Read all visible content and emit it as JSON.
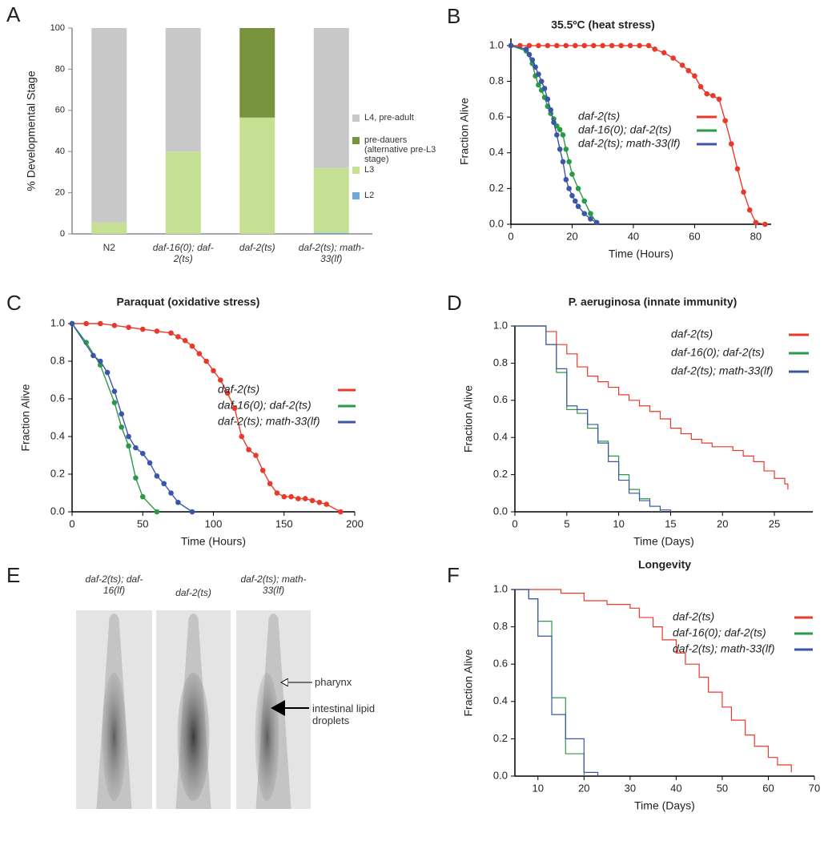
{
  "panel_labels": [
    "A",
    "B",
    "C",
    "D",
    "E",
    "F"
  ],
  "chart_data": [
    {
      "type": "bar",
      "ylabel": "% Developmental Stage",
      "categories": [
        "N2",
        "daf-16(0); daf-2(ts)",
        "daf-2(ts)",
        "daf-2(ts); math-33(lf)"
      ],
      "series": [
        {
          "name": "L2",
          "color": "#6fa8dc",
          "values": [
            0,
            0,
            0,
            0.5
          ]
        },
        {
          "name": "L3",
          "color": "#c6e093",
          "values": [
            5.5,
            40,
            56.5,
            31.5
          ]
        },
        {
          "name": "pre-dauers (alternative pre-L3 stage)",
          "color": "#77943c",
          "values": [
            0,
            0,
            43.5,
            0
          ]
        },
        {
          "name": "L4, pre-adult",
          "color": "#c8c8c8",
          "values": [
            94.5,
            60,
            0,
            68
          ]
        }
      ],
      "ylim": [
        0,
        100
      ],
      "yticks": [
        0,
        20,
        40,
        60,
        80,
        100
      ]
    },
    {
      "type": "line",
      "markers": true,
      "title": "35.5ºC (heat stress)",
      "xlabel": "Time (Hours)",
      "ylabel": "Fraction Alive",
      "xlim": [
        0,
        85
      ],
      "xticks": [
        0,
        20,
        40,
        60,
        80
      ],
      "ylim": [
        0,
        1.04
      ],
      "yticks": [
        {
          "value": 0,
          "label": "0.0"
        },
        0.2,
        0.4,
        0.6,
        0.8,
        {
          "value": 1,
          "label": "1.0"
        }
      ],
      "series": [
        {
          "name": "daf-2(ts)",
          "color": "#e8392b",
          "x": [
            0,
            3,
            6,
            9,
            12,
            15,
            18,
            21,
            24,
            27,
            30,
            33,
            36,
            39,
            42,
            45,
            47,
            50,
            53,
            56,
            58,
            60,
            62,
            64,
            66,
            68,
            70,
            72,
            74,
            76,
            78,
            80,
            83
          ],
          "values": [
            1,
            1,
            1,
            1,
            1,
            1,
            1,
            1,
            1,
            1,
            1,
            1,
            1,
            1,
            1,
            1,
            0.98,
            0.96,
            0.93,
            0.89,
            0.86,
            0.83,
            0.77,
            0.73,
            0.72,
            0.7,
            0.58,
            0.45,
            0.31,
            0.18,
            0.08,
            0.01,
            0
          ]
        },
        {
          "name": "daf-16(0); daf-2(ts)",
          "color": "#2a9a48",
          "x": [
            0,
            5,
            7,
            8,
            9,
            10,
            11,
            12,
            13,
            14,
            15,
            16,
            17,
            18,
            19,
            20,
            22,
            24,
            26,
            28
          ],
          "values": [
            1,
            0.97,
            0.9,
            0.83,
            0.78,
            0.75,
            0.71,
            0.66,
            0.62,
            0.59,
            0.55,
            0.53,
            0.5,
            0.42,
            0.35,
            0.28,
            0.2,
            0.13,
            0.06,
            0.01
          ]
        },
        {
          "name": "daf-2(ts); math-33(lf)",
          "color": "#3a56a8",
          "x": [
            0,
            5,
            6,
            7,
            8,
            9,
            10,
            11,
            12,
            13,
            14,
            15,
            16,
            17,
            18,
            19,
            20,
            21,
            22,
            24,
            26,
            28
          ],
          "values": [
            1,
            0.98,
            0.95,
            0.92,
            0.88,
            0.84,
            0.8,
            0.76,
            0.7,
            0.64,
            0.57,
            0.5,
            0.42,
            0.35,
            0.25,
            0.2,
            0.16,
            0.13,
            0.1,
            0.06,
            0.03,
            0.01
          ]
        }
      ]
    },
    {
      "type": "line",
      "markers": true,
      "title": "Paraquat (oxidative stress)",
      "xlabel": "Time (Hours)",
      "ylabel": "Fraction Alive",
      "xlim": [
        0,
        200
      ],
      "xticks": [
        0,
        50,
        100,
        150,
        200
      ],
      "ylim": [
        0,
        1
      ],
      "yticks": [
        {
          "value": 0,
          "label": "0.0"
        },
        0.2,
        0.4,
        0.6,
        0.8,
        {
          "value": 1,
          "label": "1.0"
        }
      ],
      "series": [
        {
          "name": "daf-2(ts)",
          "color": "#e8392b",
          "x": [
            0,
            10,
            20,
            30,
            40,
            50,
            60,
            70,
            75,
            80,
            85,
            90,
            95,
            100,
            105,
            110,
            115,
            120,
            125,
            130,
            135,
            140,
            145,
            150,
            155,
            160,
            165,
            170,
            175,
            180,
            190
          ],
          "values": [
            1,
            1,
            1,
            0.99,
            0.98,
            0.97,
            0.96,
            0.95,
            0.93,
            0.91,
            0.88,
            0.84,
            0.8,
            0.75,
            0.7,
            0.63,
            0.55,
            0.4,
            0.33,
            0.3,
            0.22,
            0.15,
            0.1,
            0.08,
            0.08,
            0.07,
            0.07,
            0.06,
            0.05,
            0.04,
            0
          ]
        },
        {
          "name": "daf-16(0); daf-2(ts)",
          "color": "#2a9a48",
          "x": [
            0,
            10,
            20,
            30,
            35,
            40,
            45,
            50,
            60
          ],
          "values": [
            1,
            0.9,
            0.78,
            0.58,
            0.45,
            0.35,
            0.18,
            0.08,
            0
          ]
        },
        {
          "name": "daf-2(ts); math-33(lf)",
          "color": "#3a56a8",
          "x": [
            0,
            15,
            20,
            25,
            30,
            35,
            40,
            45,
            50,
            55,
            60,
            65,
            70,
            75,
            85
          ],
          "values": [
            1,
            0.83,
            0.8,
            0.74,
            0.64,
            0.52,
            0.4,
            0.34,
            0.31,
            0.26,
            0.19,
            0.15,
            0.1,
            0.05,
            0
          ]
        }
      ]
    },
    {
      "type": "step",
      "title": "P. aeruginosa (innate immunity)",
      "xlabel": "Time (Days)",
      "ylabel": "Fraction Alive",
      "xlim": [
        0,
        28.7
      ],
      "xticks": [
        0,
        5,
        10,
        15,
        20,
        25
      ],
      "ylim": [
        0,
        1
      ],
      "yticks": [
        {
          "value": 0,
          "label": "0.0"
        },
        0.2,
        0.4,
        0.6,
        0.8,
        {
          "value": 1,
          "label": "1.0"
        }
      ],
      "series": [
        {
          "name": "daf-2(ts)",
          "color": "#e8392b",
          "x": [
            0,
            2,
            3,
            4,
            5,
            6,
            7,
            8,
            9,
            10,
            11,
            12,
            13,
            14,
            15,
            16,
            17,
            18,
            19,
            20,
            21,
            22,
            23,
            24,
            25,
            26,
            26.3
          ],
          "values": [
            1,
            1,
            0.97,
            0.9,
            0.85,
            0.78,
            0.73,
            0.7,
            0.67,
            0.63,
            0.6,
            0.57,
            0.54,
            0.5,
            0.45,
            0.42,
            0.39,
            0.37,
            0.35,
            0.35,
            0.33,
            0.3,
            0.27,
            0.22,
            0.18,
            0.15,
            0.12
          ]
        },
        {
          "name": "daf-16(0); daf-2(ts)",
          "color": "#2a9a48",
          "x": [
            0,
            2,
            3,
            4,
            5,
            6,
            7,
            8,
            9,
            10,
            11,
            12,
            13,
            14
          ],
          "values": [
            1,
            1,
            0.9,
            0.75,
            0.55,
            0.53,
            0.45,
            0.38,
            0.3,
            0.2,
            0.12,
            0.07,
            0.03,
            0
          ]
        },
        {
          "name": "daf-2(ts); math-33(lf)",
          "color": "#3a56a8",
          "x": [
            0,
            2,
            3,
            4,
            5,
            6,
            7,
            8,
            9,
            10,
            11,
            12,
            13,
            14,
            15
          ],
          "values": [
            1,
            1,
            0.9,
            0.77,
            0.57,
            0.55,
            0.47,
            0.37,
            0.27,
            0.17,
            0.1,
            0.06,
            0.03,
            0.01,
            0
          ]
        }
      ]
    },
    {
      "type": "step",
      "title": "Longevity",
      "xlabel": "Time (Days)",
      "ylabel": "Fraction Alive",
      "xlim": [
        5,
        70
      ],
      "xticks": [
        10,
        20,
        30,
        40,
        50,
        60,
        70
      ],
      "ylim": [
        0,
        1
      ],
      "yticks": [
        {
          "value": 0,
          "label": "0.0"
        },
        0.2,
        0.4,
        0.6,
        0.8,
        {
          "value": 1,
          "label": "1.0"
        }
      ],
      "series": [
        {
          "name": "daf-2(ts)",
          "color": "#e8392b",
          "x": [
            5,
            10,
            15,
            20,
            25,
            30,
            32,
            35,
            37,
            40,
            42,
            45,
            47,
            50,
            52,
            55,
            57,
            60,
            62,
            65
          ],
          "values": [
            1,
            1,
            0.98,
            0.94,
            0.92,
            0.9,
            0.85,
            0.8,
            0.73,
            0.66,
            0.6,
            0.53,
            0.45,
            0.37,
            0.3,
            0.22,
            0.16,
            0.1,
            0.06,
            0.02
          ]
        },
        {
          "name": "daf-16(0); daf-2(ts)",
          "color": "#2a9a48",
          "x": [
            5,
            8,
            10,
            13,
            16,
            20
          ],
          "values": [
            1,
            0.95,
            0.83,
            0.42,
            0.12,
            0
          ]
        },
        {
          "name": "daf-2(ts); math-33(lf)",
          "color": "#3a56a8",
          "x": [
            5,
            8,
            10,
            13,
            16,
            20,
            23
          ],
          "values": [
            1,
            0.95,
            0.75,
            0.33,
            0.2,
            0.02,
            0
          ]
        }
      ]
    }
  ],
  "image_panel": {
    "captions": [
      "daf-2(ts); daf-16(lf)",
      "daf-2(ts)",
      "daf-2(ts); math-33(lf)"
    ],
    "annotations": [
      "pharynx",
      "intestinal lipid droplets"
    ]
  }
}
